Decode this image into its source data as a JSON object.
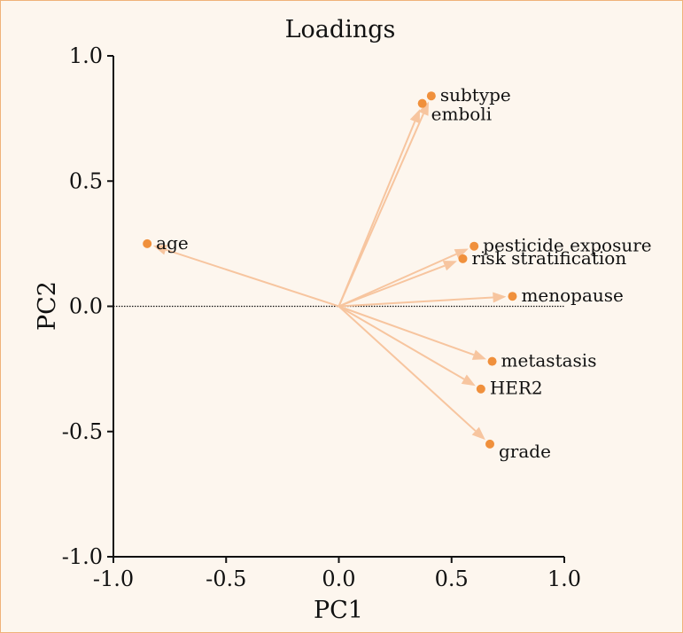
{
  "chart_data": {
    "type": "scatter",
    "title": "Loadings",
    "xlabel": "PC1",
    "ylabel": "PC2",
    "xlim": [
      -1.0,
      1.0
    ],
    "ylim": [
      -1.0,
      1.0
    ],
    "xticks": [
      "-1.0",
      "-0.5",
      "0.0",
      "0.5",
      "1.0"
    ],
    "yticks": [
      "1.0",
      "0.5",
      "0.0",
      "-0.5",
      "-1.0"
    ],
    "zero_line": true,
    "colors": {
      "point": "#f0903c",
      "arrow": "#f7c59f",
      "axis": "#111111"
    },
    "loadings": [
      {
        "name": "subtype",
        "x": 0.41,
        "y": 0.84
      },
      {
        "name": "emboli",
        "x": 0.37,
        "y": 0.81
      },
      {
        "name": "age",
        "x": -0.85,
        "y": 0.25
      },
      {
        "name": "pesticide exposure",
        "x": 0.6,
        "y": 0.24
      },
      {
        "name": "risk stratification",
        "x": 0.55,
        "y": 0.19
      },
      {
        "name": "menopause",
        "x": 0.77,
        "y": 0.04
      },
      {
        "name": "metastasis",
        "x": 0.68,
        "y": -0.22
      },
      {
        "name": "HER2",
        "x": 0.63,
        "y": -0.33
      },
      {
        "name": "grade",
        "x": 0.67,
        "y": -0.55
      }
    ]
  }
}
